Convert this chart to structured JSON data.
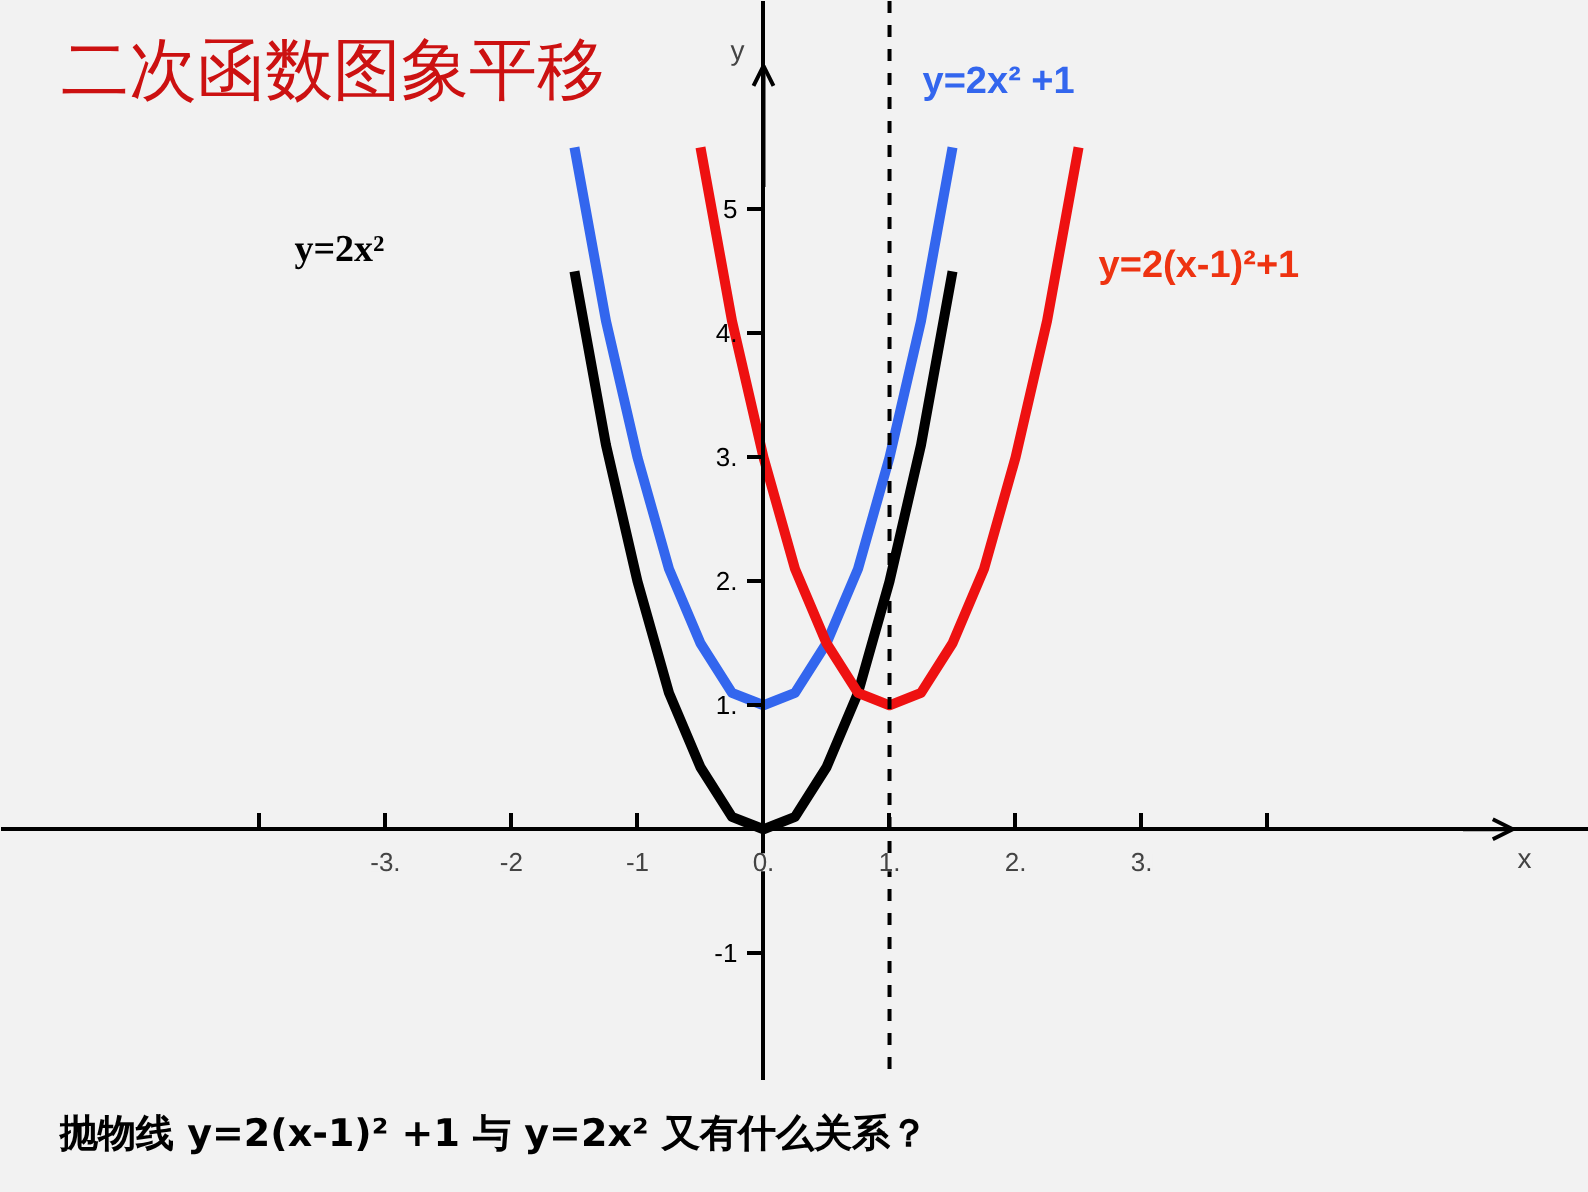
{
  "chart_data": {
    "type": "line",
    "title": "二次函数图象平移",
    "xlabel": "x",
    "ylabel": "y",
    "xlim": [
      -6.05,
      6.55
    ],
    "ylim": [
      -2.03,
      6.68
    ],
    "xticks": [
      {
        "value": -4,
        "label": null
      },
      {
        "value": -3,
        "label": "-3."
      },
      {
        "value": -2,
        "label": "-2"
      },
      {
        "value": -1,
        "label": "-1"
      },
      {
        "value": 0,
        "label": "0."
      },
      {
        "value": 1,
        "label": "1."
      },
      {
        "value": 2,
        "label": "2."
      },
      {
        "value": 3,
        "label": "3."
      },
      {
        "value": 4,
        "label": null
      }
    ],
    "yticks": [
      {
        "value": -1,
        "label": "-1"
      },
      {
        "value": 1,
        "label": "1."
      },
      {
        "value": 2,
        "label": "2."
      },
      {
        "value": 3,
        "label": "3."
      },
      {
        "value": 4,
        "label": "4."
      },
      {
        "value": 5,
        "label": "5"
      }
    ],
    "grid": false,
    "marker": "none",
    "line_style": "solid",
    "series": [
      {
        "name": "y=2x²",
        "color": "#000000",
        "x": [
          -1.5,
          -1.25,
          -1,
          -0.75,
          -0.5,
          -0.25,
          0,
          0.25,
          0.5,
          0.75,
          1,
          1.25,
          1.5
        ],
        "values": [
          4.5,
          3.1,
          2,
          1.1,
          0.5,
          0.1,
          0,
          0.1,
          0.5,
          1.1,
          2,
          3.1,
          4.5
        ]
      },
      {
        "name": "y=2x² +1",
        "color": "#3366ee",
        "x": [
          -1.5,
          -1.25,
          -1,
          -0.75,
          -0.5,
          -0.25,
          0,
          0.25,
          0.5,
          0.75,
          1,
          1.25,
          1.5
        ],
        "values": [
          5.5,
          4.1,
          3,
          2.1,
          1.5,
          1.1,
          1,
          1.1,
          1.5,
          2.1,
          3,
          4.1,
          5.5
        ]
      },
      {
        "name": "y=2(x-1)²+1",
        "color": "#ee1111",
        "x": [
          -0.5,
          -0.25,
          0,
          0.25,
          0.5,
          0.75,
          1,
          1.25,
          1.5,
          1.75,
          2,
          2.25,
          2.5
        ],
        "values": [
          5.5,
          4.1,
          3,
          2.1,
          1.5,
          1.1,
          1,
          1.1,
          1.5,
          2.1,
          3,
          4.1,
          5.5
        ]
      }
    ],
    "ref_lines": [
      {
        "axis": "x",
        "value": 1,
        "label": null,
        "line_style": "dashed",
        "color": "#000000"
      }
    ],
    "annotations": [
      "抛物线 y=2(x-1)² +1 与 y=2x² 又有什么关系？"
    ]
  }
}
